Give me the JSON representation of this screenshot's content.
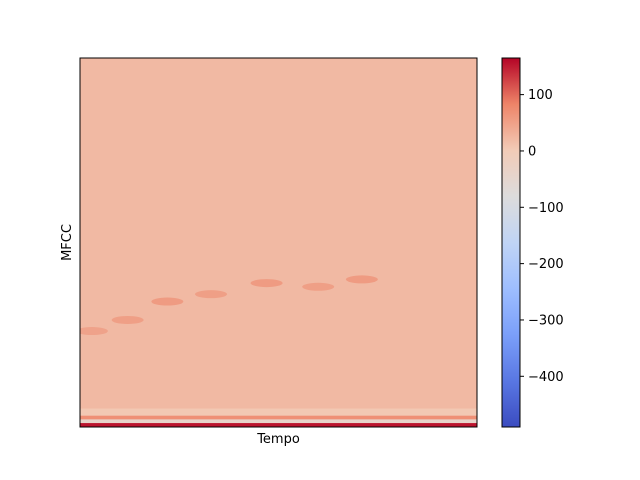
{
  "chart_data": {
    "type": "heatmap",
    "title": "",
    "xlabel": "Tempo",
    "ylabel": "MFCC",
    "x_ticks": [],
    "y_ticks": [],
    "colormap": "coolwarm",
    "colorbar": {
      "min": -490,
      "max": 165,
      "ticks": [
        {
          "value": 100,
          "label": "100"
        },
        {
          "value": 0,
          "label": "0"
        },
        {
          "value": -100,
          "label": "−100"
        },
        {
          "value": -200,
          "label": "−200"
        },
        {
          "value": -300,
          "label": "−300"
        },
        {
          "value": -400,
          "label": "−400"
        }
      ]
    },
    "base_level": 22,
    "low_coefficient_bands": [
      {
        "from_bottom": 0.0,
        "to_bottom": 0.012,
        "value": 155
      },
      {
        "from_bottom": 0.012,
        "to_bottom": 0.022,
        "value": -40
      },
      {
        "from_bottom": 0.022,
        "to_bottom": 0.032,
        "value": 70
      },
      {
        "from_bottom": 0.032,
        "to_bottom": 0.05,
        "value": 5
      }
    ],
    "dark_trace": [
      {
        "t": 0.03,
        "level": 0.26,
        "value": 55
      },
      {
        "t": 0.12,
        "level": 0.29,
        "value": 60
      },
      {
        "t": 0.22,
        "level": 0.34,
        "value": 65
      },
      {
        "t": 0.33,
        "level": 0.36,
        "value": 60
      },
      {
        "t": 0.47,
        "level": 0.39,
        "value": 65
      },
      {
        "t": 0.6,
        "level": 0.38,
        "value": 60
      },
      {
        "t": 0.71,
        "level": 0.4,
        "value": 65
      }
    ]
  }
}
